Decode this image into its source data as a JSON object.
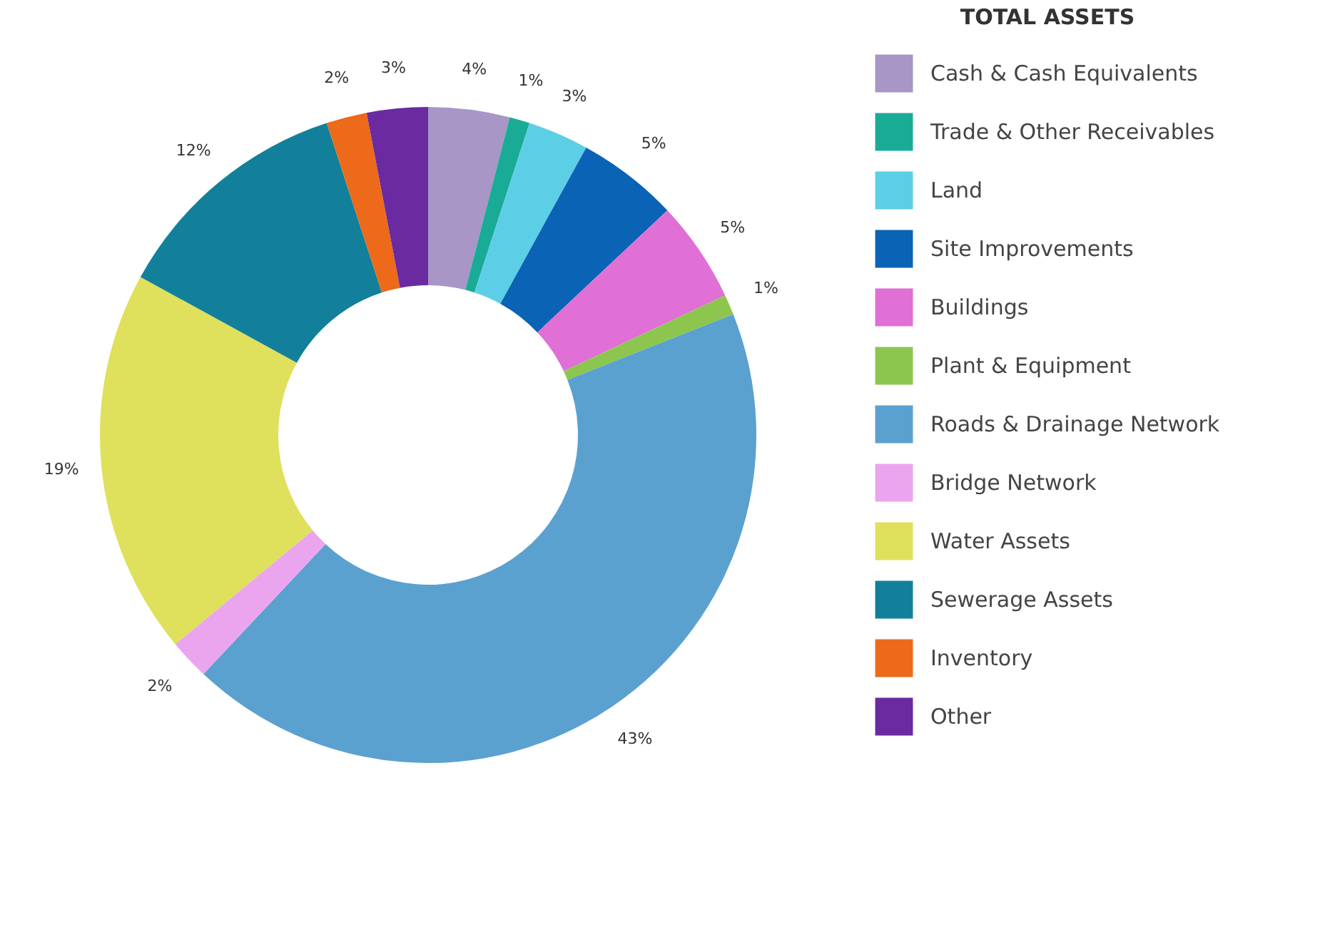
{
  "chart_data": {
    "type": "donut",
    "legend_title": "TOTAL ASSETS",
    "legend": "right",
    "categories": [
      "Cash & Cash Equivalents",
      "Trade & Other Receivables",
      "Land",
      "Site Improvements",
      "Buildings",
      "Plant & Equipment",
      "Roads & Drainage Network",
      "Bridge Network",
      "Water Assets",
      "Sewerage Assets",
      "Inventory",
      "Other"
    ],
    "values": [
      4,
      1,
      3,
      5,
      5,
      1,
      43,
      2,
      19,
      12,
      2,
      3
    ],
    "value_labels": [
      "4%",
      "1%",
      "3%",
      "5%",
      "5%",
      "1%",
      "43%",
      "2%",
      "19%",
      "12%",
      "2%",
      "3%"
    ],
    "colors": [
      "#a796c6",
      "#1aab97",
      "#5ccfe6",
      "#0a63b5",
      "#e06fd6",
      "#8dc64f",
      "#5aa1d0",
      "#eba5ef",
      "#dfe05b",
      "#12809a",
      "#ec6a19",
      "#6a2aa0"
    ]
  }
}
